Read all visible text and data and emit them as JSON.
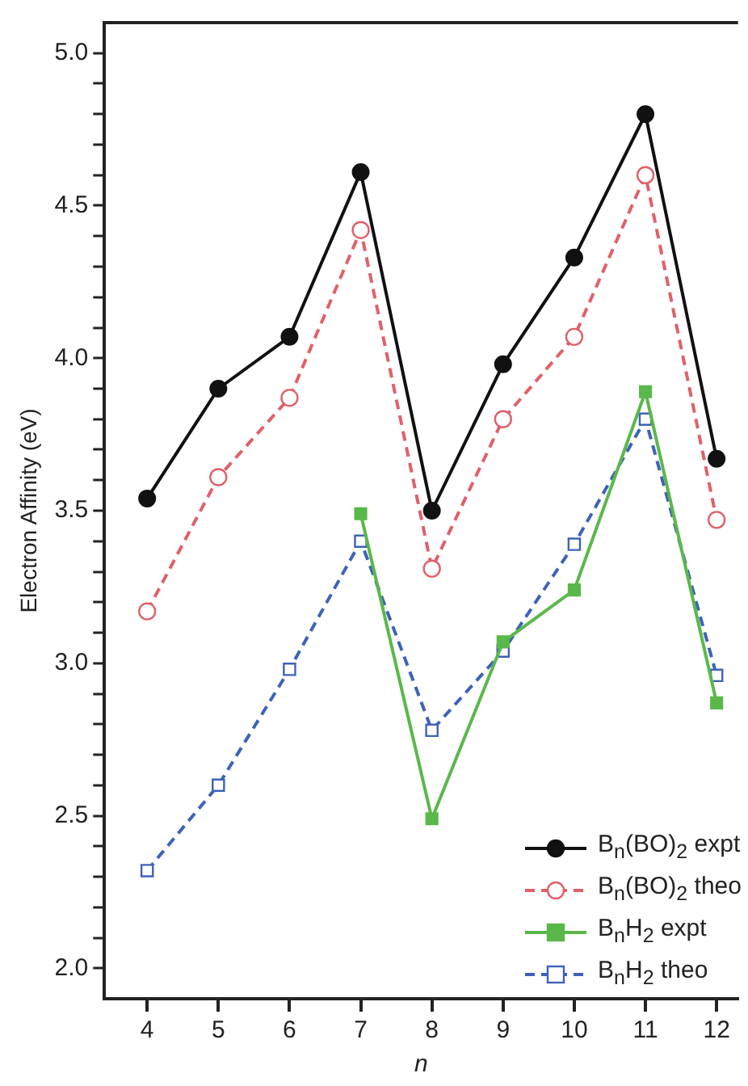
{
  "chart_data": {
    "type": "line",
    "xlabel": "n",
    "ylabel": "Electron Affinity (eV)",
    "x": [
      4,
      5,
      6,
      7,
      8,
      9,
      10,
      11,
      12
    ],
    "xlim": [
      3.4,
      12.3
    ],
    "xticks": [
      4,
      5,
      6,
      7,
      8,
      9,
      10,
      11,
      12
    ],
    "ylim": [
      1.9,
      5.1
    ],
    "yticks": [
      {
        "value": 2,
        "label": "2.0"
      },
      {
        "value": 2.1,
        "label": null
      },
      {
        "value": 2.2,
        "label": null
      },
      {
        "value": 2.3,
        "label": null
      },
      {
        "value": 2.4,
        "label": null
      },
      2.5,
      {
        "value": 2.6,
        "label": null
      },
      {
        "value": 2.7,
        "label": null
      },
      {
        "value": 2.8,
        "label": null
      },
      {
        "value": 2.9,
        "label": null
      },
      {
        "value": 3,
        "label": "3.0"
      },
      {
        "value": 3.1,
        "label": null
      },
      {
        "value": 3.2,
        "label": null
      },
      {
        "value": 3.3,
        "label": null
      },
      {
        "value": 3.4,
        "label": null
      },
      3.5,
      {
        "value": 3.6,
        "label": null
      },
      {
        "value": 3.7,
        "label": null
      },
      {
        "value": 3.8,
        "label": null
      },
      {
        "value": 3.9,
        "label": null
      },
      {
        "value": 4,
        "label": "4.0"
      },
      {
        "value": 4.1,
        "label": null
      },
      {
        "value": 4.2,
        "label": null
      },
      {
        "value": 4.3,
        "label": null
      },
      {
        "value": 4.4,
        "label": null
      },
      4.5,
      {
        "value": 4.6,
        "label": null
      },
      {
        "value": 4.7,
        "label": null
      },
      {
        "value": 4.8,
        "label": null
      },
      {
        "value": 4.9,
        "label": null
      },
      {
        "value": 5,
        "label": "5.0"
      }
    ],
    "grid": false,
    "legend": "bottom right",
    "series": [
      {
        "name": "B$_{n}$(BO)$_{2}$ expt",
        "color": "#111111",
        "marker": "circle",
        "line_style": "solid",
        "values": [
          3.54,
          3.9,
          4.07,
          4.61,
          3.5,
          3.98,
          4.33,
          4.8,
          3.67
        ]
      },
      {
        "name": "B$_{n}$(BO)$_{2}$ theo",
        "color": "#e0606a",
        "marker": "circle",
        "line_style": "dashed",
        "values": [
          3.17,
          3.61,
          3.87,
          4.42,
          3.31,
          3.8,
          4.07,
          4.6,
          3.47
        ]
      },
      {
        "name": "B$_{n}$H$_{2}$ expt",
        "color": "#5ab84a",
        "marker": "square",
        "line_style": "solid",
        "values": [
          null,
          null,
          null,
          3.49,
          2.49,
          3.07,
          3.24,
          3.89,
          2.87
        ]
      },
      {
        "name": "B$_{n}$H$_{2}$ theo",
        "color": "#3f62b8",
        "marker": "square",
        "line_style": "dashed",
        "values": [
          2.32,
          2.6,
          2.98,
          3.4,
          2.78,
          3.04,
          3.39,
          3.8,
          2.96
        ]
      }
    ]
  }
}
